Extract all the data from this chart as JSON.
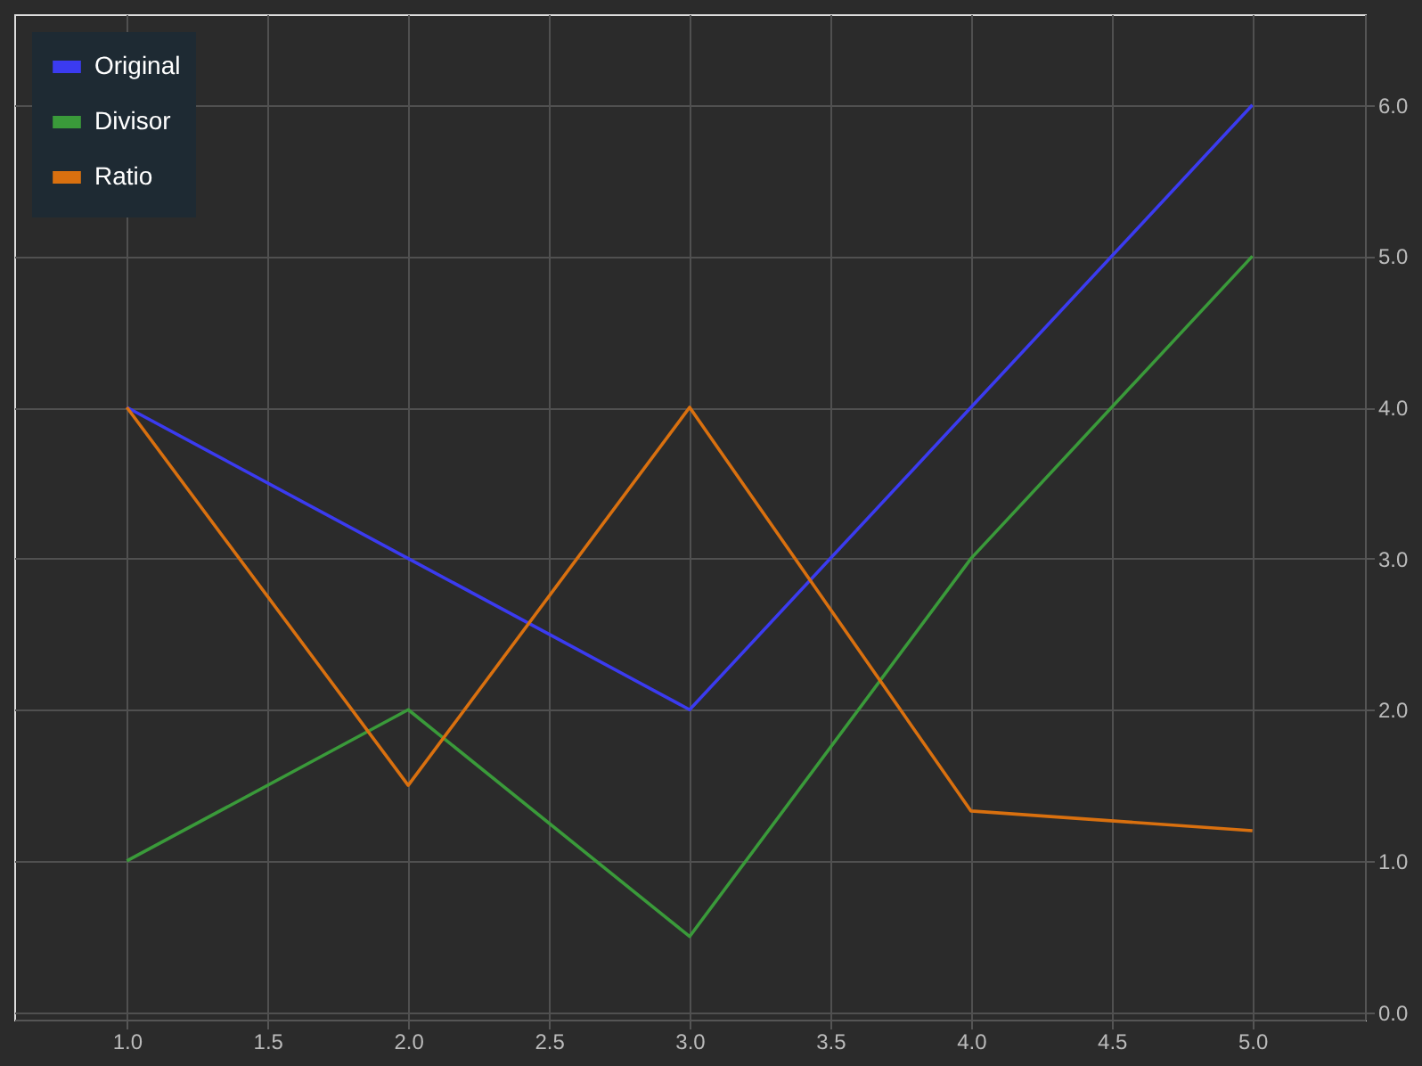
{
  "chart_data": {
    "type": "line",
    "x": [
      1,
      2,
      3,
      4,
      5
    ],
    "series": [
      {
        "name": "Original",
        "color": "#3b3bf0",
        "values": [
          4,
          3,
          2,
          4,
          6
        ]
      },
      {
        "name": "Divisor",
        "color": "#3a9a3a",
        "values": [
          1,
          2,
          0.5,
          3,
          5
        ]
      },
      {
        "name": "Ratio",
        "color": "#d9700f",
        "values": [
          4,
          1.5,
          4,
          1.33,
          1.2
        ]
      }
    ],
    "xlim": [
      0.6,
      5.4
    ],
    "xticks": [
      {
        "value": 1,
        "label": "1.0"
      },
      {
        "value": 1.5,
        "label": "1.5"
      },
      {
        "value": 2,
        "label": "2.0"
      },
      {
        "value": 2.5,
        "label": "2.5"
      },
      {
        "value": 3,
        "label": "3.0"
      },
      {
        "value": 3.5,
        "label": "3.5"
      },
      {
        "value": 4,
        "label": "4.0"
      },
      {
        "value": 4.5,
        "label": "4.5"
      },
      {
        "value": 5,
        "label": "5.0"
      }
    ],
    "ylim": [
      -0.05,
      6.6
    ],
    "yticks": [
      {
        "value": 0,
        "label": "0.0"
      },
      {
        "value": 1,
        "label": "1.0"
      },
      {
        "value": 2,
        "label": "2.0"
      },
      {
        "value": 3,
        "label": "3.0"
      },
      {
        "value": 4,
        "label": "4.0"
      },
      {
        "value": 5,
        "label": "5.0"
      },
      {
        "value": 6,
        "label": "6.0"
      }
    ],
    "grid": true,
    "legend": "top left",
    "marker": "none",
    "line_style": "solid"
  }
}
